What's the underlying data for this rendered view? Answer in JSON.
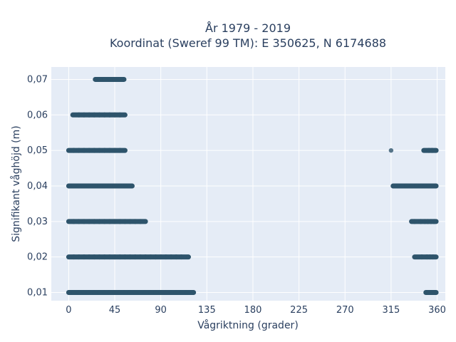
{
  "chart_data": {
    "type": "scatter",
    "title_line1": "År 1979 - 2019",
    "title_line2": "Koordinat (Sweref 99 TM): E 350625, N 6174688",
    "xlabel": "Vågriktning (grader)",
    "ylabel": "Signifikant våghöjd (m)",
    "xlim": [
      -17,
      368
    ],
    "ylim": [
      0.0077,
      0.0735
    ],
    "xticks": [
      0,
      45,
      90,
      135,
      180,
      225,
      270,
      315,
      360
    ],
    "xtick_labels": [
      "0",
      "45",
      "90",
      "135",
      "180",
      "225",
      "270",
      "315",
      "360"
    ],
    "yticks": [
      0.01,
      0.02,
      0.03,
      0.04,
      0.05,
      0.06,
      0.07
    ],
    "ytick_labels": [
      "0,01",
      "0,02",
      "0,03",
      "0,04",
      "0,05",
      "0,06",
      "0,07"
    ],
    "grid": true,
    "marker_color": "#2e546c",
    "plot_bg": "#e5ecf6",
    "points": [
      {
        "x": 0,
        "y": 0.01
      },
      {
        "x": 5,
        "y": 0.01
      },
      {
        "x": 10,
        "y": 0.01
      },
      {
        "x": 15,
        "y": 0.01
      },
      {
        "x": 20,
        "y": 0.01
      },
      {
        "x": 25,
        "y": 0.01
      },
      {
        "x": 30,
        "y": 0.01
      },
      {
        "x": 35,
        "y": 0.01
      },
      {
        "x": 40,
        "y": 0.01
      },
      {
        "x": 45,
        "y": 0.01
      },
      {
        "x": 50,
        "y": 0.01
      },
      {
        "x": 55,
        "y": 0.01
      },
      {
        "x": 60,
        "y": 0.01
      },
      {
        "x": 65,
        "y": 0.01
      },
      {
        "x": 70,
        "y": 0.01
      },
      {
        "x": 75,
        "y": 0.01
      },
      {
        "x": 80,
        "y": 0.01
      },
      {
        "x": 85,
        "y": 0.01
      },
      {
        "x": 90,
        "y": 0.01
      },
      {
        "x": 95,
        "y": 0.01
      },
      {
        "x": 100,
        "y": 0.01
      },
      {
        "x": 105,
        "y": 0.01
      },
      {
        "x": 110,
        "y": 0.01
      },
      {
        "x": 115,
        "y": 0.01
      },
      {
        "x": 122,
        "y": 0.01
      },
      {
        "x": 349,
        "y": 0.01
      },
      {
        "x": 355,
        "y": 0.01
      },
      {
        "x": 357,
        "y": 0.01
      },
      {
        "x": 359,
        "y": 0.01
      },
      {
        "x": 0,
        "y": 0.02
      },
      {
        "x": 5,
        "y": 0.02
      },
      {
        "x": 10,
        "y": 0.02
      },
      {
        "x": 15,
        "y": 0.02
      },
      {
        "x": 20,
        "y": 0.02
      },
      {
        "x": 25,
        "y": 0.02
      },
      {
        "x": 30,
        "y": 0.02
      },
      {
        "x": 35,
        "y": 0.02
      },
      {
        "x": 40,
        "y": 0.02
      },
      {
        "x": 45,
        "y": 0.02
      },
      {
        "x": 50,
        "y": 0.02
      },
      {
        "x": 55,
        "y": 0.02
      },
      {
        "x": 60,
        "y": 0.02
      },
      {
        "x": 65,
        "y": 0.02
      },
      {
        "x": 70,
        "y": 0.02
      },
      {
        "x": 75,
        "y": 0.02
      },
      {
        "x": 80,
        "y": 0.02
      },
      {
        "x": 85,
        "y": 0.02
      },
      {
        "x": 90,
        "y": 0.02
      },
      {
        "x": 95,
        "y": 0.02
      },
      {
        "x": 100,
        "y": 0.02
      },
      {
        "x": 105,
        "y": 0.02
      },
      {
        "x": 110,
        "y": 0.02
      },
      {
        "x": 117,
        "y": 0.02
      },
      {
        "x": 338,
        "y": 0.02
      },
      {
        "x": 345,
        "y": 0.02
      },
      {
        "x": 350,
        "y": 0.02
      },
      {
        "x": 353,
        "y": 0.02
      },
      {
        "x": 356,
        "y": 0.02
      },
      {
        "x": 359,
        "y": 0.02
      },
      {
        "x": 0,
        "y": 0.03
      },
      {
        "x": 5,
        "y": 0.03
      },
      {
        "x": 10,
        "y": 0.03
      },
      {
        "x": 15,
        "y": 0.03
      },
      {
        "x": 20,
        "y": 0.03
      },
      {
        "x": 25,
        "y": 0.03
      },
      {
        "x": 30,
        "y": 0.03
      },
      {
        "x": 35,
        "y": 0.03
      },
      {
        "x": 40,
        "y": 0.03
      },
      {
        "x": 45,
        "y": 0.03
      },
      {
        "x": 50,
        "y": 0.03
      },
      {
        "x": 55,
        "y": 0.03
      },
      {
        "x": 60,
        "y": 0.03
      },
      {
        "x": 65,
        "y": 0.03
      },
      {
        "x": 70,
        "y": 0.03
      },
      {
        "x": 75,
        "y": 0.03
      },
      {
        "x": 335,
        "y": 0.03
      },
      {
        "x": 338,
        "y": 0.03
      },
      {
        "x": 344,
        "y": 0.03
      },
      {
        "x": 348,
        "y": 0.03
      },
      {
        "x": 351,
        "y": 0.03
      },
      {
        "x": 354,
        "y": 0.03
      },
      {
        "x": 357,
        "y": 0.03
      },
      {
        "x": 359,
        "y": 0.03
      },
      {
        "x": 0,
        "y": 0.04
      },
      {
        "x": 5,
        "y": 0.04
      },
      {
        "x": 10,
        "y": 0.04
      },
      {
        "x": 15,
        "y": 0.04
      },
      {
        "x": 20,
        "y": 0.04
      },
      {
        "x": 25,
        "y": 0.04
      },
      {
        "x": 30,
        "y": 0.04
      },
      {
        "x": 35,
        "y": 0.04
      },
      {
        "x": 40,
        "y": 0.04
      },
      {
        "x": 45,
        "y": 0.04
      },
      {
        "x": 50,
        "y": 0.04
      },
      {
        "x": 55,
        "y": 0.04
      },
      {
        "x": 62,
        "y": 0.04
      },
      {
        "x": 317,
        "y": 0.04
      },
      {
        "x": 322,
        "y": 0.04
      },
      {
        "x": 330,
        "y": 0.04
      },
      {
        "x": 335,
        "y": 0.04
      },
      {
        "x": 340,
        "y": 0.04
      },
      {
        "x": 344,
        "y": 0.04
      },
      {
        "x": 348,
        "y": 0.04
      },
      {
        "x": 352,
        "y": 0.04
      },
      {
        "x": 355,
        "y": 0.04
      },
      {
        "x": 359,
        "y": 0.04
      },
      {
        "x": 0,
        "y": 0.05
      },
      {
        "x": 5,
        "y": 0.05
      },
      {
        "x": 10,
        "y": 0.05
      },
      {
        "x": 15,
        "y": 0.05
      },
      {
        "x": 20,
        "y": 0.05
      },
      {
        "x": 25,
        "y": 0.05
      },
      {
        "x": 30,
        "y": 0.05
      },
      {
        "x": 35,
        "y": 0.05
      },
      {
        "x": 40,
        "y": 0.05
      },
      {
        "x": 45,
        "y": 0.05
      },
      {
        "x": 50,
        "y": 0.05
      },
      {
        "x": 55,
        "y": 0.05
      },
      {
        "x": 315,
        "y": 0.05
      },
      {
        "x": 347,
        "y": 0.05
      },
      {
        "x": 352,
        "y": 0.05
      },
      {
        "x": 355,
        "y": 0.05
      },
      {
        "x": 359,
        "y": 0.05
      },
      {
        "x": 4,
        "y": 0.06
      },
      {
        "x": 10,
        "y": 0.06
      },
      {
        "x": 15,
        "y": 0.06
      },
      {
        "x": 20,
        "y": 0.06
      },
      {
        "x": 25,
        "y": 0.06
      },
      {
        "x": 30,
        "y": 0.06
      },
      {
        "x": 35,
        "y": 0.06
      },
      {
        "x": 40,
        "y": 0.06
      },
      {
        "x": 45,
        "y": 0.06
      },
      {
        "x": 50,
        "y": 0.06
      },
      {
        "x": 55,
        "y": 0.06
      },
      {
        "x": 26,
        "y": 0.07
      },
      {
        "x": 30,
        "y": 0.07
      },
      {
        "x": 35,
        "y": 0.07
      },
      {
        "x": 40,
        "y": 0.07
      },
      {
        "x": 45,
        "y": 0.07
      },
      {
        "x": 50,
        "y": 0.07
      },
      {
        "x": 54,
        "y": 0.07
      }
    ]
  }
}
